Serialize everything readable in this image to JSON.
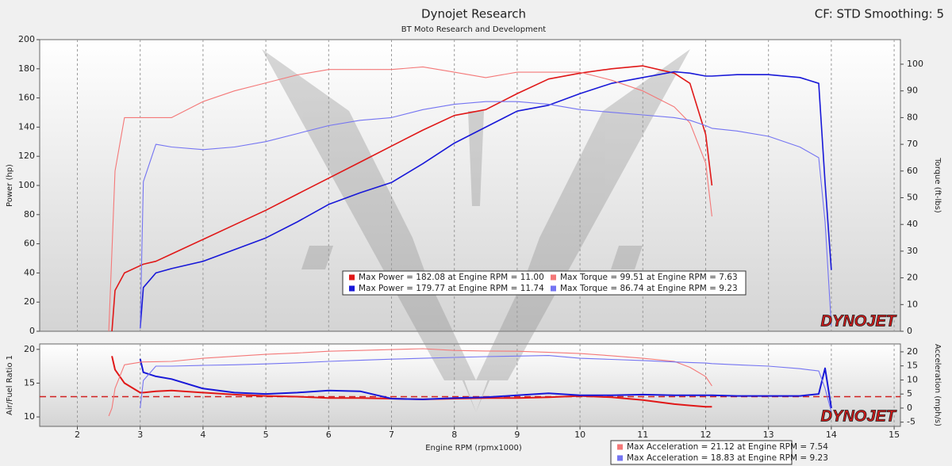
{
  "header": {
    "title": "Dynojet Research",
    "subtitle": "BT Moto Research and Development",
    "settings": "CF: STD Smoothing: 5"
  },
  "chart_data": [
    {
      "type": "line",
      "ylabel": "Power (hp)",
      "y2label": "Torque (ft-lbs)",
      "logo": "DYNOJET",
      "grid": true,
      "xlim": [
        1.4,
        15.1
      ],
      "ylim": [
        0,
        200
      ],
      "yticks": [
        0,
        20,
        40,
        60,
        80,
        100,
        120,
        140,
        160,
        180,
        200
      ],
      "y2lim": [
        0,
        109.2
      ],
      "y2ticks": [
        0,
        10,
        20,
        30,
        40,
        50,
        60,
        70,
        80,
        90,
        100
      ],
      "x": [
        2.5,
        2.55,
        2.6,
        2.75,
        3,
        3.05,
        3.25,
        3.5,
        4,
        4.5,
        5,
        5.5,
        6,
        6.5,
        7,
        7.5,
        8,
        8.5,
        9,
        9.5,
        10,
        10.5,
        11,
        11.5,
        11.75,
        12,
        12.1,
        12.5,
        13,
        13.5,
        13.8,
        13.9,
        14
      ],
      "series": [
        {
          "name": "Max Power = 182.08 at Engine RPM = 11.00",
          "color": "#e01818",
          "axis": "y",
          "values": [
            null,
            0,
            28,
            40,
            45,
            46,
            48,
            53,
            63,
            73,
            83,
            94,
            105,
            116,
            127,
            138,
            148,
            152,
            163,
            173,
            177,
            180,
            182,
            177,
            170,
            135,
            100,
            null,
            null,
            null,
            null,
            null,
            null
          ]
        },
        {
          "name": "Max Power = 179.77 at Engine RPM = 11.74",
          "color": "#1818d8",
          "axis": "y",
          "values": [
            null,
            null,
            null,
            null,
            2,
            30,
            40,
            43,
            48,
            56,
            64,
            75,
            87,
            95,
            102,
            115,
            129,
            140,
            151,
            155,
            163,
            170,
            174,
            178,
            177,
            175,
            175,
            176,
            176,
            174,
            170,
            102,
            42
          ]
        },
        {
          "name": "Max Torque = 99.51 at Engine RPM = 7.63",
          "color": "#f47878",
          "axis": "y2",
          "values": [
            0,
            30,
            60,
            80,
            80,
            80,
            80,
            80,
            86,
            90,
            93,
            96,
            98,
            98,
            98,
            99,
            97,
            95,
            97,
            97,
            97,
            94,
            90,
            84,
            78,
            63,
            43,
            null,
            null,
            null,
            null,
            null,
            null
          ]
        },
        {
          "name": "Max Torque = 86.74 at Engine RPM = 9.23",
          "color": "#7474f2",
          "axis": "y2",
          "values": [
            null,
            null,
            null,
            null,
            1,
            56,
            70,
            69,
            68,
            69,
            71,
            74,
            77,
            79,
            80,
            83,
            85,
            86,
            86,
            85,
            83,
            82,
            81,
            80,
            79,
            77,
            76,
            75,
            73,
            69,
            65,
            41,
            2
          ]
        }
      ]
    },
    {
      "type": "line",
      "ylabel": "Air/Fuel Ratio 1",
      "y2label": "Acceleration (mph/s)",
      "xlabel": "Engine RPM (rpmx1000)",
      "logo": "DYNOJET",
      "grid": true,
      "xlim": [
        1.4,
        15.1
      ],
      "xticks": [
        2,
        3,
        4,
        5,
        6,
        7,
        8,
        9,
        10,
        11,
        12,
        13,
        14,
        15
      ],
      "ylim": [
        8.6,
        20.8
      ],
      "yticks": [
        10,
        15,
        20
      ],
      "y2lim": [
        -6.5,
        22.8
      ],
      "y2ticks": [
        -5,
        0,
        5,
        10,
        15,
        20
      ],
      "ref_line": {
        "value": 13,
        "color": "#d02020"
      },
      "x": [
        2.5,
        2.55,
        2.6,
        2.75,
        3,
        3.05,
        3.25,
        3.5,
        4,
        4.5,
        5,
        5.5,
        6,
        6.5,
        7,
        7.5,
        8,
        8.5,
        9,
        9.5,
        10,
        10.5,
        11,
        11.5,
        11.75,
        12,
        12.1,
        12.5,
        13,
        13.5,
        13.8,
        13.9,
        14
      ],
      "series": [
        {
          "color": "#e01818",
          "axis": "y",
          "values": [
            null,
            19,
            17,
            15,
            13.6,
            13.6,
            13.8,
            13.9,
            13.6,
            13.3,
            13.1,
            13,
            12.8,
            12.8,
            12.7,
            12.6,
            12.7,
            12.8,
            12.8,
            12.9,
            13.1,
            12.9,
            12.5,
            11.9,
            11.7,
            11.5,
            11.5,
            null,
            null,
            null,
            null,
            null,
            null
          ]
        },
        {
          "color": "#1818d8",
          "axis": "y",
          "values": [
            null,
            null,
            null,
            null,
            18.6,
            16.6,
            16,
            15.6,
            14.2,
            13.6,
            13.4,
            13.6,
            13.9,
            13.8,
            12.7,
            12.6,
            12.8,
            12.9,
            13.2,
            13.5,
            13.2,
            13.2,
            13.3,
            13.2,
            13.2,
            13.2,
            13.2,
            13.1,
            13.1,
            13.1,
            13.4,
            17.2,
            11.3
          ]
        },
        {
          "name": "Max Acceleration = 21.12 at Engine RPM = 7.54",
          "color": "#f47878",
          "axis": "y2",
          "values": [
            -2.8,
            0,
            7,
            15.4,
            16.3,
            16.4,
            16.5,
            16.6,
            17.7,
            18.4,
            19.1,
            19.6,
            20.2,
            20.5,
            20.8,
            21.1,
            20.5,
            20.3,
            20.2,
            19.8,
            19.4,
            18.6,
            17.7,
            16.6,
            14.5,
            11.2,
            7.9,
            null,
            null,
            null,
            null,
            null,
            null
          ]
        },
        {
          "name": "Max Acceleration = 18.83 at Engine RPM = 9.23",
          "color": "#7474f2",
          "axis": "y2",
          "values": [
            null,
            null,
            null,
            null,
            0,
            9.8,
            14.9,
            14.9,
            15.2,
            15.4,
            15.7,
            16.1,
            16.6,
            17,
            17.4,
            17.7,
            18,
            18.3,
            18.5,
            18.7,
            17.7,
            17.3,
            16.9,
            16.4,
            16.2,
            16,
            15.8,
            15.4,
            14.9,
            14,
            13.2,
            7,
            -1.4
          ]
        }
      ]
    }
  ]
}
